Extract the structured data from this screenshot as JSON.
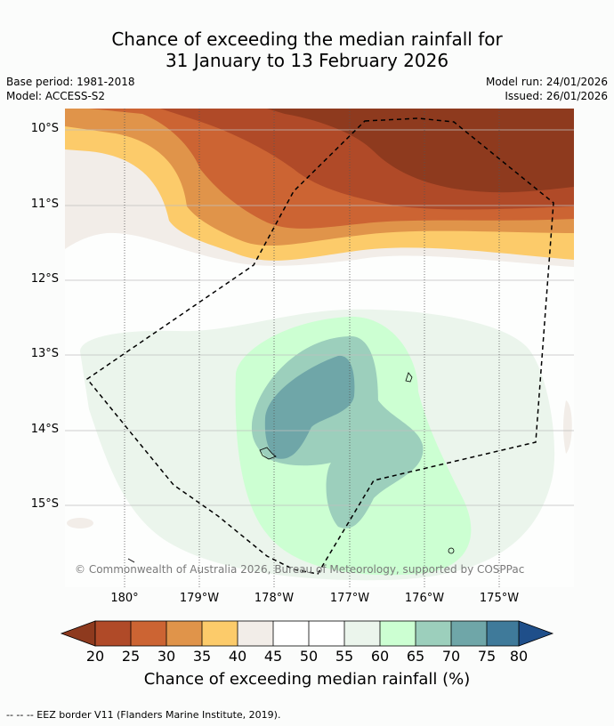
{
  "title_line1": "Chance of exceeding the median rainfall for",
  "title_line2": "31 January to 13 February 2026",
  "base_period": "Base period: 1981-2018",
  "model": "Model: ACCESS-S2",
  "model_run": "Model run: 24/01/2026",
  "issued": "Issued: 26/01/2026",
  "lat_labels": [
    "10°S",
    "11°S",
    "12°S",
    "13°S",
    "14°S",
    "15°S"
  ],
  "lon_labels": [
    "180°",
    "179°W",
    "178°W",
    "177°W",
    "176°W",
    "175°W"
  ],
  "copyright": "© Commonwealth of Australia 2026, Bureau of Meteorology, supported by COSPPac",
  "colorbar": {
    "ticks": [
      "20",
      "25",
      "30",
      "35",
      "40",
      "45",
      "50",
      "55",
      "60",
      "65",
      "70",
      "75",
      "80"
    ],
    "colors": [
      "#8e3a1e",
      "#b04a28",
      "#cc6433",
      "#e0944a",
      "#fccb6a",
      "#f2ede8",
      "#ffffff",
      "#ffffff",
      "#ebf5ec",
      "#ccffd2",
      "#9ccfbc",
      "#6fa6a8",
      "#3f7a9a",
      "#1f4f8a"
    ],
    "title": "Chance of exceeding median rainfall (%)"
  },
  "footer": "--  --  -- EEZ border V11 (Flanders Marine Institute, 2019)."
}
